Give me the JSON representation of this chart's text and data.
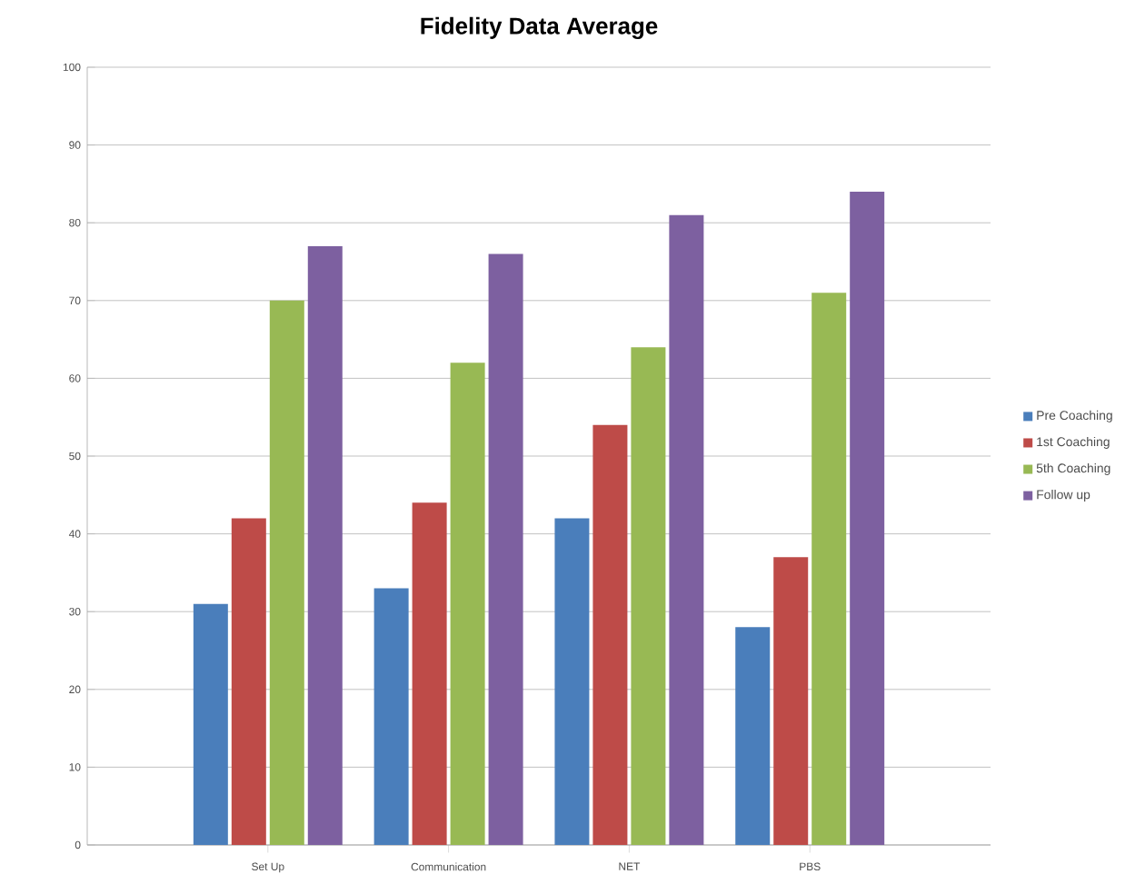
{
  "chart_data": {
    "type": "bar",
    "title": "Fidelity Data Average",
    "categories": [
      "Set Up",
      "Communication",
      "NET",
      "PBS"
    ],
    "series": [
      {
        "name": "Pre Coaching",
        "color": "#4a7ebb",
        "values": [
          31,
          33,
          42,
          28
        ]
      },
      {
        "name": "1st Coaching",
        "color": "#be4b48",
        "values": [
          42,
          44,
          54,
          37
        ]
      },
      {
        "name": "5th Coaching",
        "color": "#98b954",
        "values": [
          70,
          62,
          64,
          71
        ]
      },
      {
        "name": "Follow up",
        "color": "#7d60a0",
        "values": [
          77,
          76,
          81,
          84
        ]
      }
    ],
    "ylim": [
      0,
      100
    ],
    "yticks": [
      0,
      10,
      20,
      30,
      40,
      50,
      60,
      70,
      80,
      90,
      100
    ],
    "grid": "y",
    "legend": "right"
  }
}
